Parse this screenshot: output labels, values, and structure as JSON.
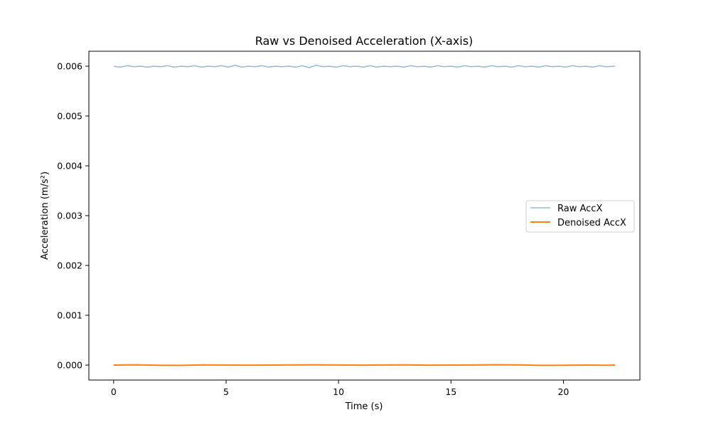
{
  "chart_data": {
    "type": "line",
    "title": "Raw vs Denoised Acceleration (X-axis)",
    "xlabel": "Time (s)",
    "ylabel": "Acceleration (m/s²)",
    "xlim": [
      -1.1,
      23.4
    ],
    "ylim": [
      -0.0003,
      0.0063
    ],
    "xticks": [
      0,
      5,
      10,
      15,
      20
    ],
    "xtick_labels": [
      "0",
      "5",
      "10",
      "15",
      "20"
    ],
    "yticks": [
      0.0,
      0.001,
      0.002,
      0.003,
      0.004,
      0.005,
      0.006
    ],
    "ytick_labels": [
      "0.000",
      "0.001",
      "0.002",
      "0.003",
      "0.004",
      "0.005",
      "0.006"
    ],
    "grid": false,
    "legend_position": "center-right",
    "series": [
      {
        "name": "Raw AccX",
        "color": "#8fbbd9",
        "x": [
          0,
          0.3,
          0.6,
          0.9,
          1.2,
          1.5,
          1.8,
          2.1,
          2.4,
          2.7,
          3.0,
          3.3,
          3.6,
          3.9,
          4.2,
          4.5,
          4.8,
          5.1,
          5.4,
          5.7,
          6.0,
          6.3,
          6.6,
          6.9,
          7.2,
          7.5,
          7.8,
          8.1,
          8.4,
          8.7,
          9.0,
          9.3,
          9.6,
          9.9,
          10.2,
          10.5,
          10.8,
          11.1,
          11.4,
          11.7,
          12.0,
          12.3,
          12.6,
          12.9,
          13.2,
          13.5,
          13.8,
          14.1,
          14.4,
          14.7,
          15.0,
          15.3,
          15.6,
          15.9,
          16.2,
          16.5,
          16.8,
          17.1,
          17.4,
          17.7,
          18.0,
          18.3,
          18.6,
          18.9,
          19.2,
          19.5,
          19.8,
          20.1,
          20.4,
          20.7,
          21.0,
          21.3,
          21.6,
          21.9,
          22.3
        ],
        "values": [
          0.006,
          0.00598,
          0.00601,
          0.00599,
          0.006,
          0.00598,
          0.006,
          0.00599,
          0.00601,
          0.00598,
          0.006,
          0.00599,
          0.00601,
          0.00598,
          0.006,
          0.00599,
          0.00601,
          0.00598,
          0.00602,
          0.00598,
          0.006,
          0.00599,
          0.00601,
          0.00598,
          0.006,
          0.00599,
          0.006,
          0.00598,
          0.00601,
          0.00597,
          0.00602,
          0.00599,
          0.006,
          0.00598,
          0.00601,
          0.00599,
          0.006,
          0.00598,
          0.00601,
          0.00598,
          0.006,
          0.00599,
          0.006,
          0.00598,
          0.00601,
          0.00599,
          0.006,
          0.00598,
          0.00601,
          0.00599,
          0.006,
          0.00598,
          0.00601,
          0.00599,
          0.006,
          0.00598,
          0.00601,
          0.00599,
          0.006,
          0.00598,
          0.00601,
          0.00599,
          0.006,
          0.00598,
          0.00601,
          0.00599,
          0.006,
          0.00598,
          0.00601,
          0.00599,
          0.006,
          0.00598,
          0.00601,
          0.00599,
          0.006
        ]
      },
      {
        "name": "Denoised AccX",
        "color": "#ff7f0e",
        "x": [
          0,
          1,
          2,
          3,
          4,
          5,
          6,
          7,
          8,
          9,
          10,
          11,
          12,
          13,
          14,
          15,
          16,
          17,
          18,
          19,
          20,
          21,
          22,
          22.3
        ],
        "values": [
          0.0,
          5e-06,
          -4e-06,
          -6e-06,
          3e-06,
          0.0,
          -2e-06,
          0.0,
          4e-06,
          6e-06,
          2e-06,
          -2e-06,
          2e-06,
          4e-06,
          -2e-06,
          0.0,
          2e-06,
          8e-06,
          3e-06,
          -5e-06,
          -3e-06,
          0.0,
          -4e-06,
          0.0
        ]
      }
    ]
  }
}
